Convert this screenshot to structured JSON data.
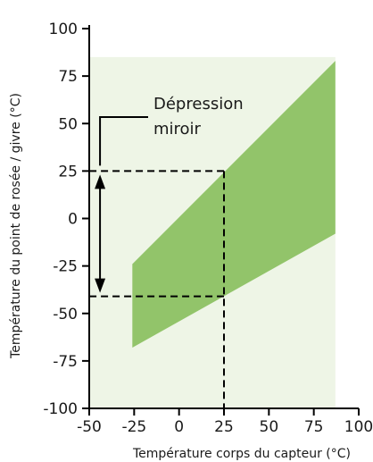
{
  "chart_data": {
    "type": "area",
    "title": "",
    "xlabel": "Température corps du capteur (°C)",
    "ylabel": "Température du point de rosée / givre (°C)",
    "xlim": [
      -50,
      100
    ],
    "ylim": [
      -100,
      100
    ],
    "x_ticks": [
      "-50",
      "-25",
      "0",
      "25",
      "50",
      "75",
      "100"
    ],
    "y_ticks": [
      "100",
      "75",
      "50",
      "25",
      "0",
      "-25",
      "-50",
      "-75",
      "-100"
    ],
    "background_region": {
      "x": [
        -50,
        87
      ],
      "y": [
        -100,
        85
      ],
      "color": "#eef5e6"
    },
    "band": {
      "color": "#92c46a",
      "x": [
        -26,
        87
      ],
      "upper": [
        -24,
        83
      ],
      "lower": [
        -68,
        -8
      ]
    },
    "guides": {
      "x_value": 25,
      "upper_dewpoint": 25,
      "lower_dewpoint": -41,
      "arrow_x": -44
    },
    "annotation": {
      "line1": "Dépression",
      "line2": "miroir"
    }
  }
}
